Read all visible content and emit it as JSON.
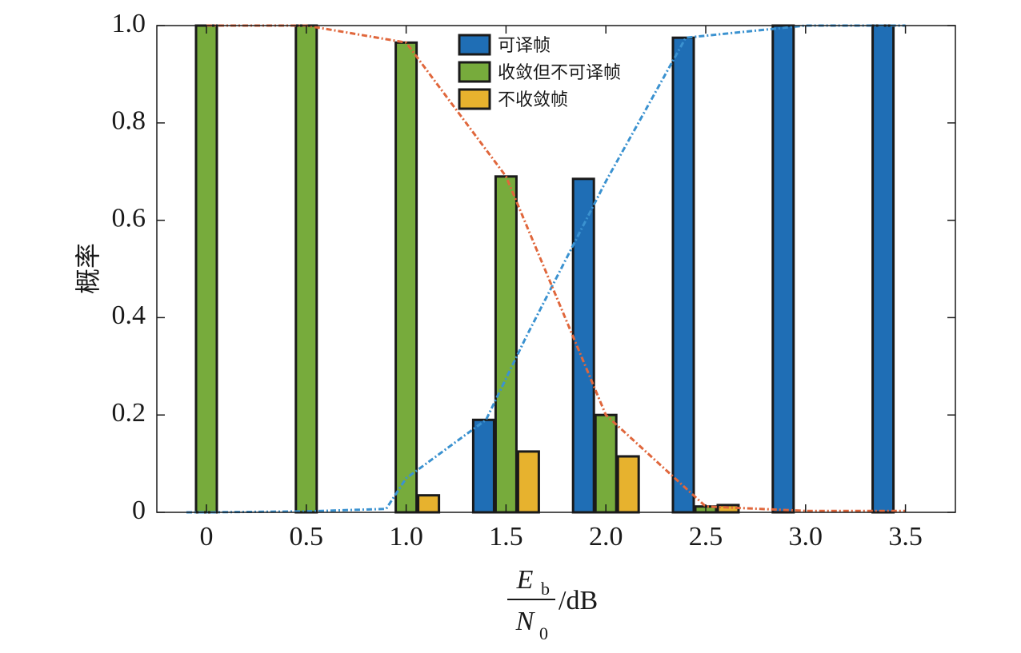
{
  "chart_data": {
    "type": "bar",
    "categories": [
      "0",
      "0.5",
      "1.0",
      "1.5",
      "2.0",
      "2.5",
      "3.0",
      "3.5"
    ],
    "series": [
      {
        "name": "可译帧",
        "color": "#1f6eb5",
        "values": [
          0,
          0,
          0,
          0.19,
          0.685,
          0.975,
          1.0,
          1.0
        ]
      },
      {
        "name": "收敛但不可译帧",
        "color": "#77ab3c",
        "values": [
          1.0,
          1.0,
          0.965,
          0.69,
          0.2,
          0.012,
          0,
          0
        ]
      },
      {
        "name": "不收敛帧",
        "color": "#e7b22e",
        "values": [
          0,
          0,
          0.035,
          0.125,
          0.115,
          0.015,
          0,
          0
        ]
      }
    ],
    "lines": [
      {
        "color": "#3b92d0",
        "points": [
          [
            -0.1,
            0
          ],
          [
            0,
            0
          ],
          [
            0.5,
            0.002
          ],
          [
            0.9,
            0.007
          ],
          [
            1.0,
            0.07
          ],
          [
            1.4,
            0.19
          ],
          [
            1.6,
            0.36
          ],
          [
            2.0,
            0.68
          ],
          [
            2.4,
            0.975
          ],
          [
            3.0,
            1.0
          ],
          [
            3.5,
            1.0
          ]
        ]
      },
      {
        "color": "#e0673c",
        "points": [
          [
            0,
            1.0
          ],
          [
            0.5,
            1.0
          ],
          [
            1.0,
            0.965
          ],
          [
            1.5,
            0.69
          ],
          [
            2.0,
            0.2
          ],
          [
            2.5,
            0.012
          ],
          [
            3.0,
            0.003
          ],
          [
            3.5,
            0.003
          ]
        ]
      }
    ],
    "ylim": [
      0,
      1.0
    ],
    "yticks": [
      "0",
      "0.2",
      "0.4",
      "0.6",
      "0.8",
      "1.0"
    ],
    "ylabel": "概率",
    "xlabel": {
      "numerator": "E",
      "numerator_sub": "b",
      "denominator": "N",
      "denominator_sub": "0",
      "unit": "/dB"
    },
    "legend_position": "top-center",
    "grid": false
  }
}
